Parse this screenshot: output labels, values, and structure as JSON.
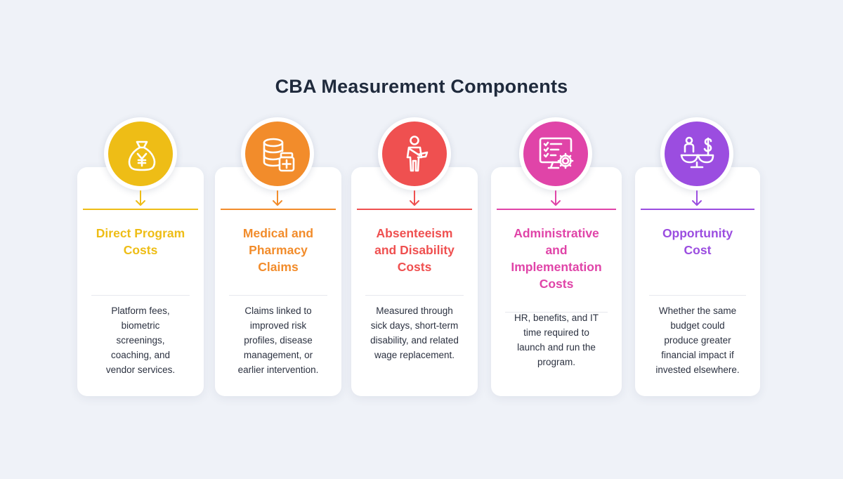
{
  "title": "CBA Measurement Components",
  "components": [
    {
      "title": "Direct Program Costs",
      "title_lines": [
        "Direct Program",
        "Costs"
      ],
      "description_lines": [
        "Platform fees,",
        "biometric",
        "screenings,",
        "coaching, and",
        "vendor services."
      ],
      "color": "#eebd16",
      "icon": "money-bag-yen-icon"
    },
    {
      "title": "Medical and Pharmacy Claims",
      "title_lines": [
        "Medical and",
        "Pharmacy",
        "Claims"
      ],
      "description_lines": [
        "Claims linked to",
        "improved risk",
        "profiles, disease",
        "management, or",
        "earlier intervention."
      ],
      "color": "#f28c2b",
      "icon": "database-medicine-icon"
    },
    {
      "title": "Absenteeism and Disability Costs",
      "title_lines": [
        "Absenteeism",
        "and Disability",
        "Costs"
      ],
      "description_lines": [
        "Measured through",
        "sick days, short-term",
        "disability, and related",
        "wage replacement."
      ],
      "color": "#ef5050",
      "icon": "person-sling-icon"
    },
    {
      "title": "Administrative and Implementation Costs",
      "title_lines": [
        "Administrative",
        "and",
        "Implementation",
        "Costs"
      ],
      "description_lines": [
        "HR, benefits, and IT",
        "time required to",
        "launch and run the",
        "program."
      ],
      "color": "#e044a8",
      "icon": "monitor-checklist-gear-icon"
    },
    {
      "title": "Opportunity Cost",
      "title_lines": [
        "Opportunity",
        "Cost"
      ],
      "description_lines": [
        "Whether the same",
        "budget could",
        "produce greater",
        "financial impact if",
        "invested elsewhere."
      ],
      "color": "#9b4de0",
      "icon": "balance-person-dollar-icon"
    }
  ]
}
